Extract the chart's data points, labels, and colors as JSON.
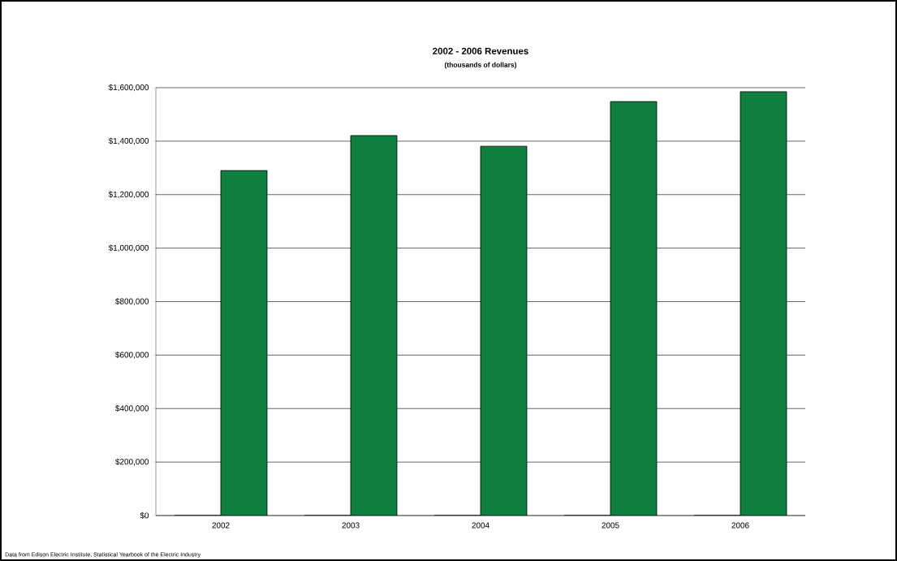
{
  "chart_data": {
    "type": "bar",
    "title": "2002 - 2006 Revenues",
    "subtitle": "(thousands of dollars)",
    "categories": [
      "2002",
      "2003",
      "2004",
      "2005",
      "2006"
    ],
    "series": [
      {
        "color": "#000000",
        "values": [
          0,
          0,
          0,
          0,
          0
        ]
      },
      {
        "color": "#0f803f",
        "values": [
          1290000,
          1421000,
          1381000,
          1548000,
          1585000
        ]
      }
    ],
    "ylim": [
      0,
      1600000
    ],
    "yticks": [
      {
        "value": 0,
        "label": "$0"
      },
      {
        "value": 200000,
        "label": "$200,000"
      },
      {
        "value": 400000,
        "label": "$400,000"
      },
      {
        "value": 600000,
        "label": "$600,000"
      },
      {
        "value": 800000,
        "label": "$800,000"
      },
      {
        "value": 1000000,
        "label": "$1,000,000"
      },
      {
        "value": 1200000,
        "label": "$1,200,000"
      },
      {
        "value": 1400000,
        "label": "$1,400,000"
      },
      {
        "value": 1600000,
        "label": "$1,600,000"
      }
    ],
    "grid": "y",
    "annotations": [
      "Data from Edison Electric Institute, Statistical Yearbook of the Electric Industry"
    ]
  }
}
